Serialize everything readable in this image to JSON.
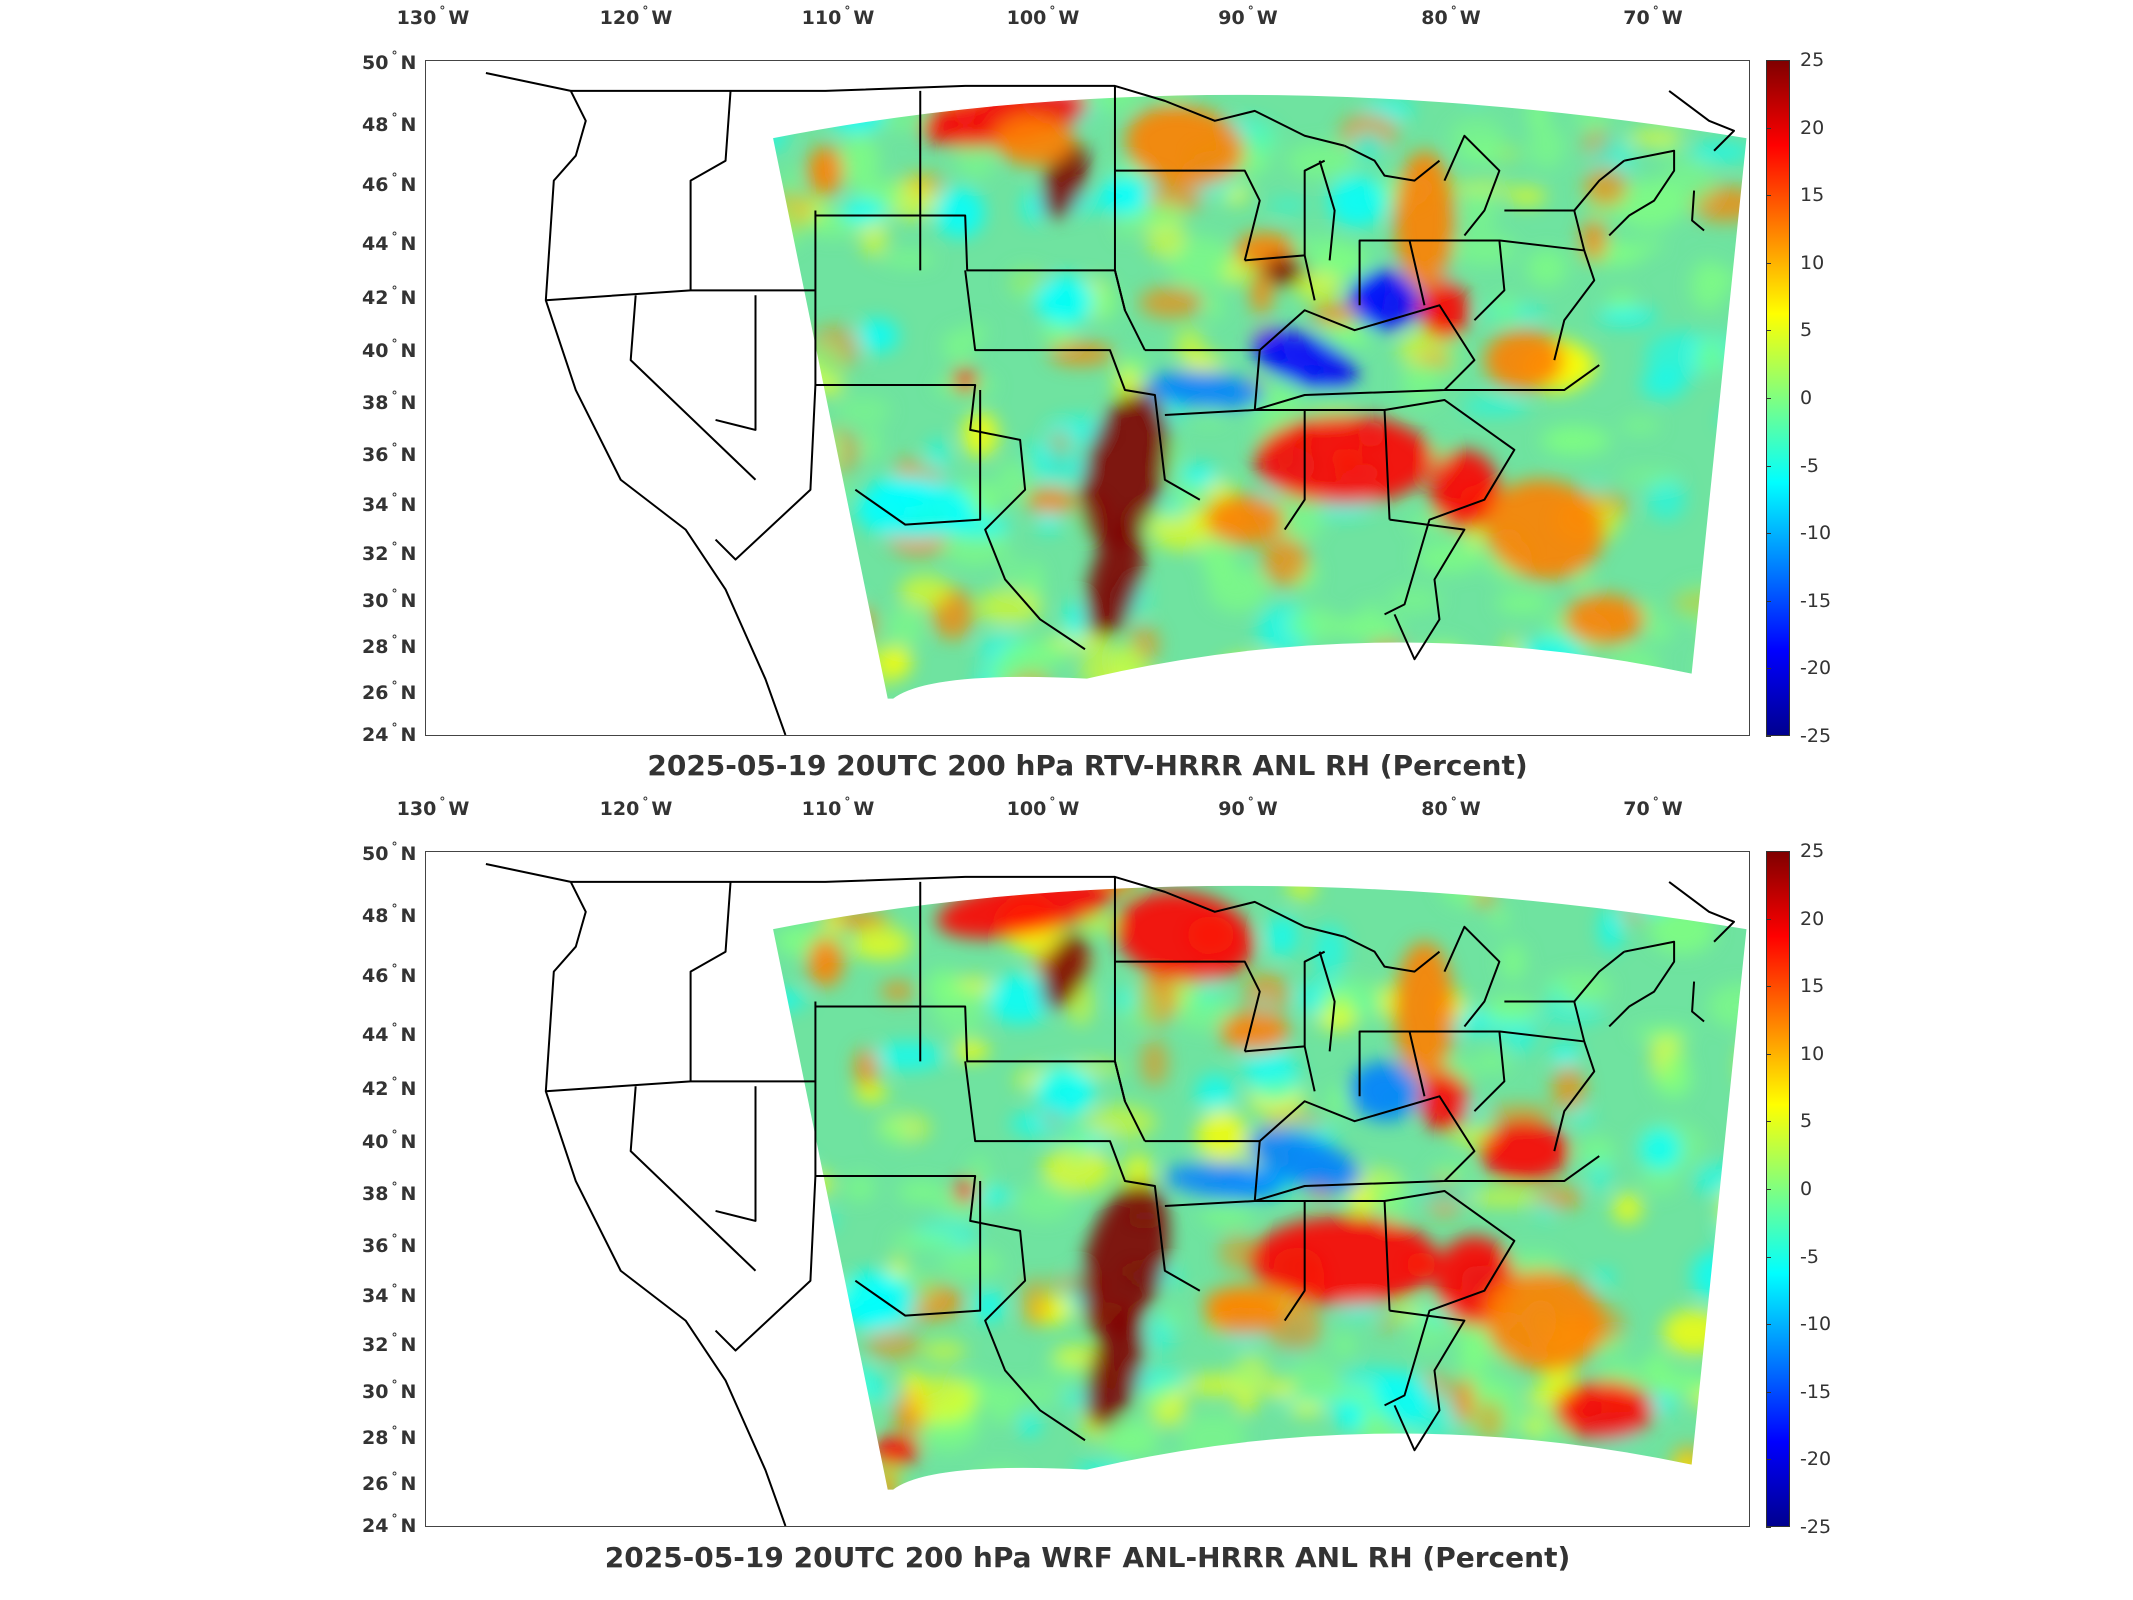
{
  "colors": {
    "frame": "#444444",
    "state_lines": "#000000",
    "missing": "#ffffff"
  },
  "colormap": [
    "#00008f",
    "#0000ff",
    "#0080ff",
    "#00ffff",
    "#80ff80",
    "#ffff00",
    "#ff8000",
    "#ff0000",
    "#800000"
  ],
  "longitude_labels": [
    "130",
    "120",
    "110",
    "100",
    "90",
    "80",
    "70"
  ],
  "longitude_hemisphere": "W",
  "latitude_labels": [
    "50",
    "48",
    "46",
    "44",
    "42",
    "40",
    "38",
    "36",
    "34",
    "32",
    "30",
    "28",
    "26",
    "24"
  ],
  "latitude_hemisphere": "N",
  "colorbar_ticks": [
    "25",
    "20",
    "15",
    "10",
    "5",
    "0",
    "-5",
    "-10",
    "-15",
    "-20",
    "-25"
  ],
  "panels": [
    {
      "id": "top",
      "title": "2025-05-19 20UTC 200 hPa RTV-HRRR ANL RH (Percent)"
    },
    {
      "id": "bottom",
      "title": "2025-05-19 20UTC 200 hPa WRF ANL-HRRR ANL RH (Percent)"
    }
  ]
}
